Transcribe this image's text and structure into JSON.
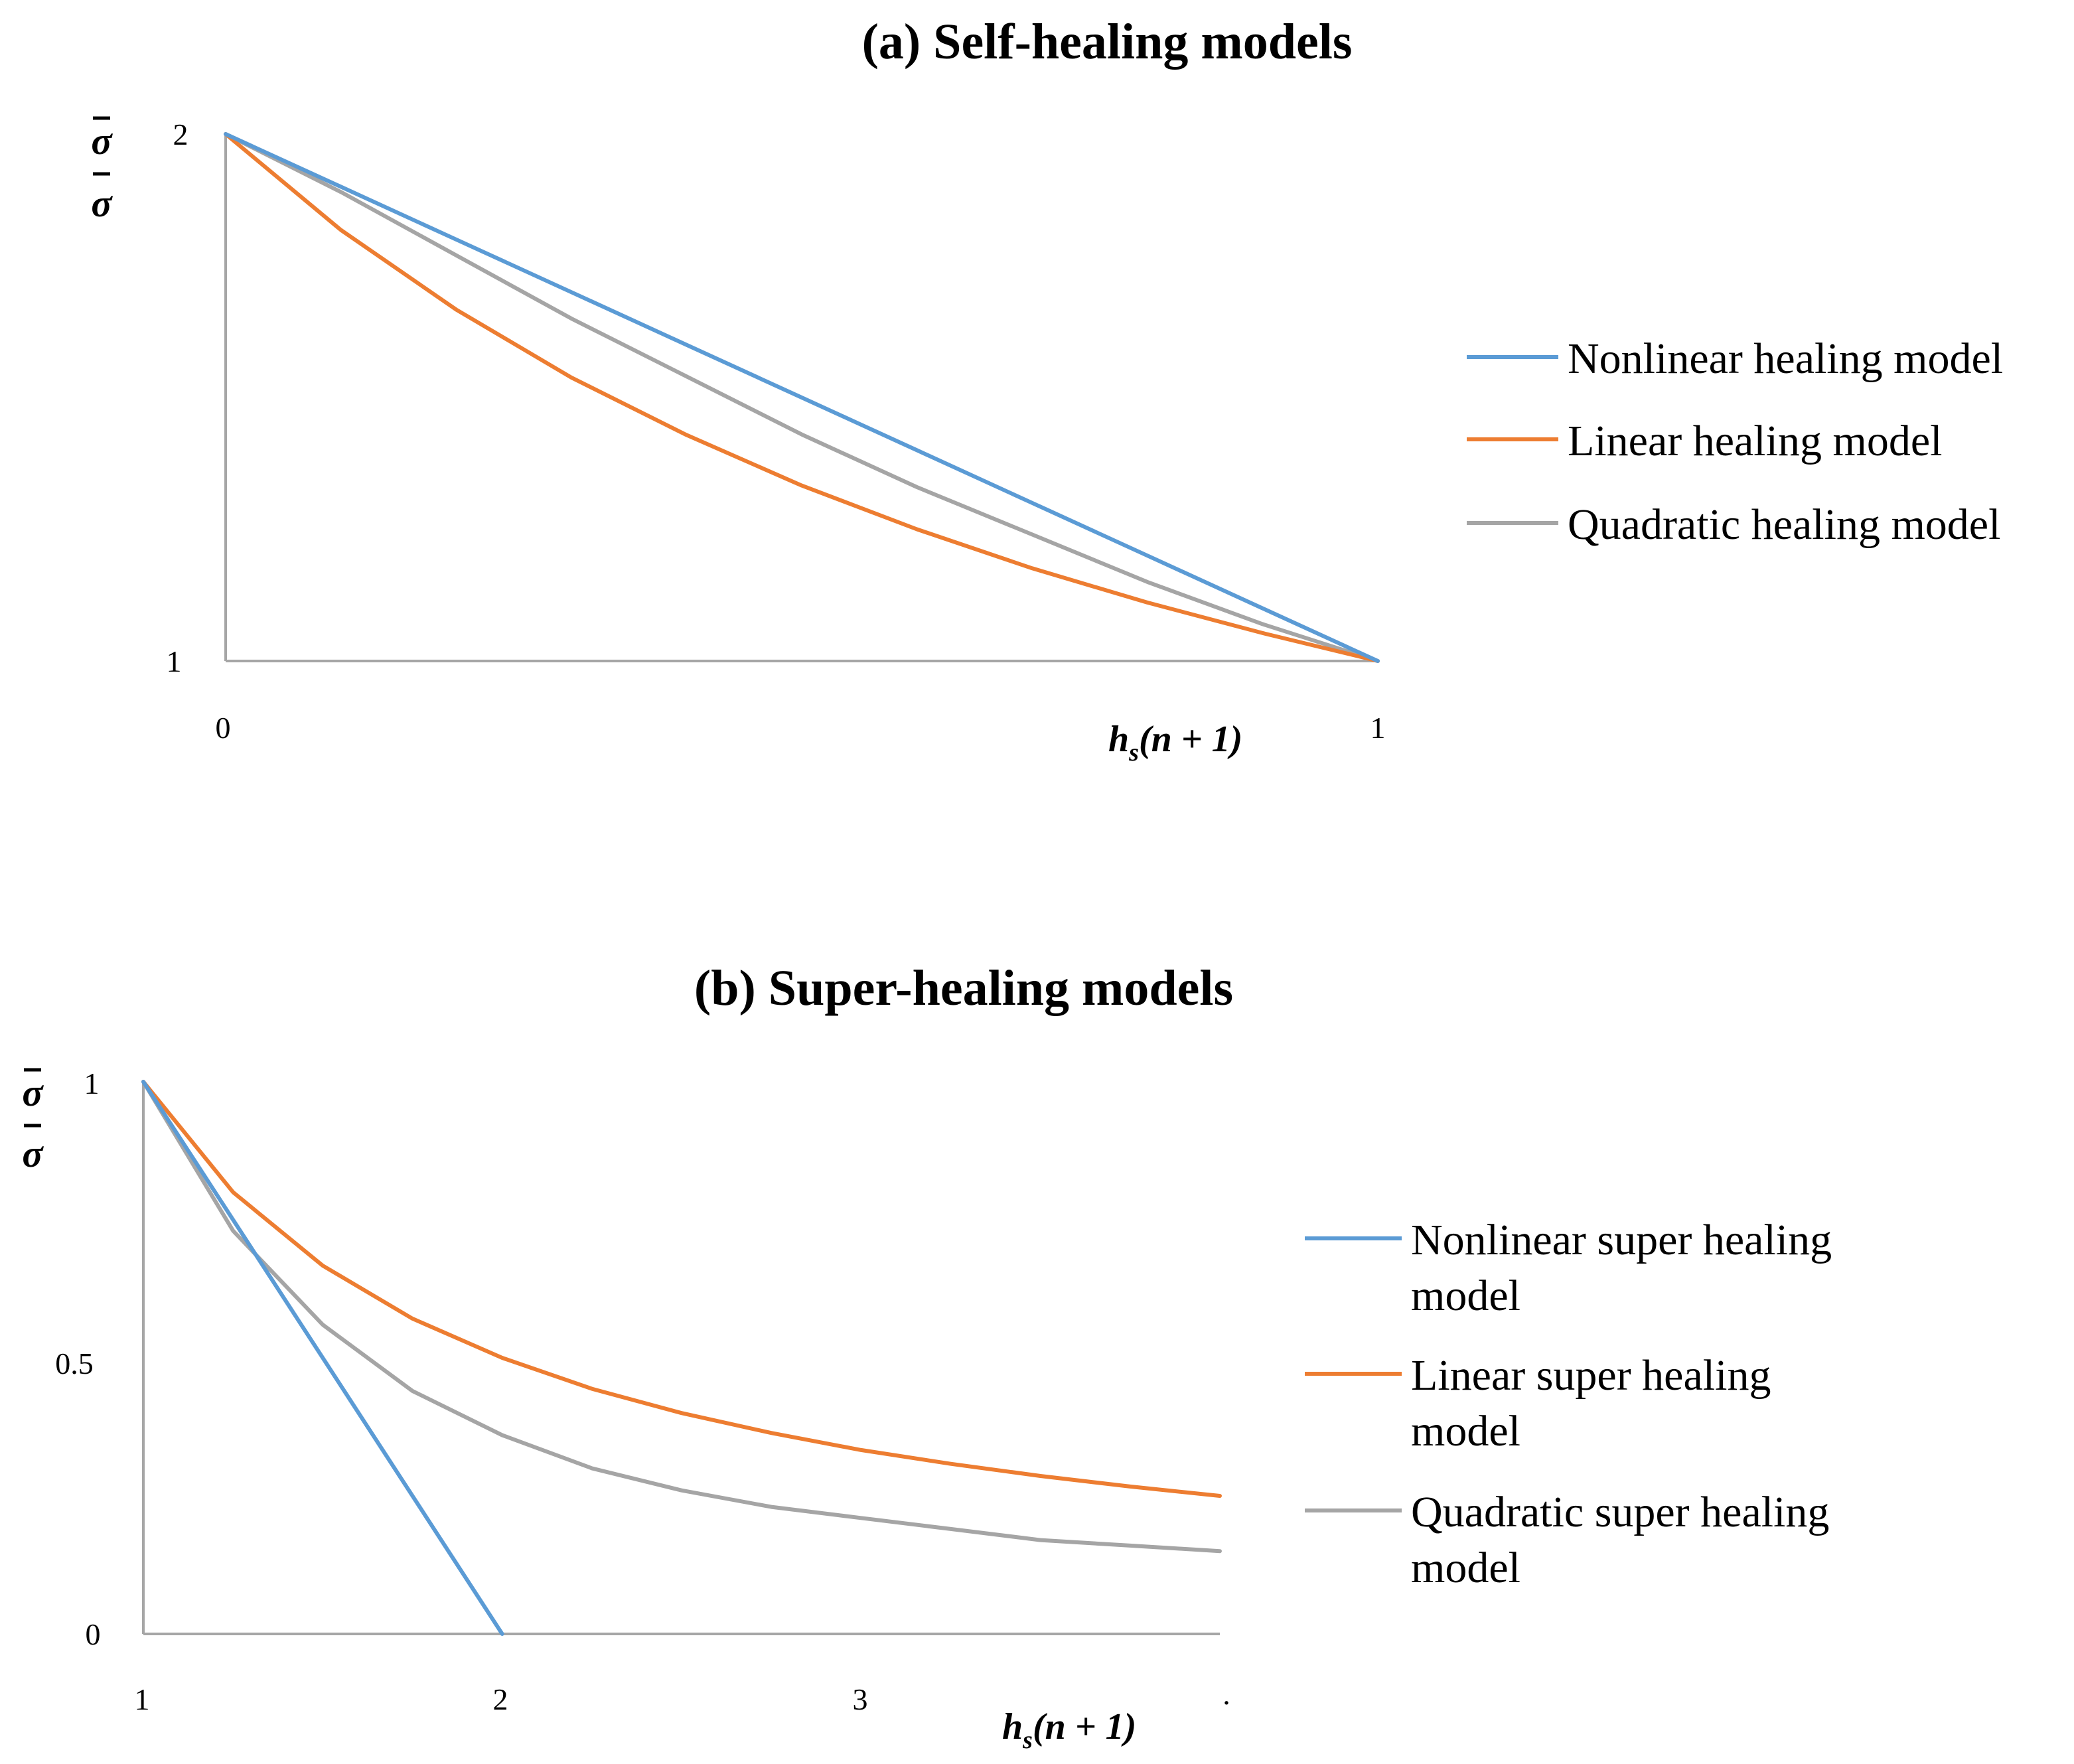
{
  "colors": {
    "nonlinear": "#5b9bd5",
    "linear": "#ed7d31",
    "quadratic": "#a5a5a5"
  },
  "chart_data": [
    {
      "type": "line",
      "title": "(a) Self-healing models",
      "xlabel": "h_s(n + 1)",
      "ylabel": "σ̄/σ",
      "xlim": [
        0,
        1
      ],
      "ylim": [
        1,
        2
      ],
      "x_ticks": [
        "0",
        "1"
      ],
      "y_ticks": [
        "1",
        "2"
      ],
      "legend_position": "right",
      "series": [
        {
          "name": "Nonlinear healing model",
          "x": [
            0,
            0.1,
            0.2,
            0.3,
            0.4,
            0.5,
            0.6,
            0.7,
            0.8,
            0.9,
            1.0
          ],
          "values": [
            2.0,
            1.9,
            1.8,
            1.7,
            1.6,
            1.5,
            1.4,
            1.3,
            1.2,
            1.1,
            1.0
          ]
        },
        {
          "name": "Linear healing model",
          "x": [
            0,
            0.1,
            0.2,
            0.3,
            0.4,
            0.5,
            0.6,
            0.7,
            0.8,
            0.9,
            1.0
          ],
          "values": [
            2.0,
            1.818,
            1.667,
            1.538,
            1.429,
            1.333,
            1.25,
            1.176,
            1.111,
            1.053,
            1.0
          ]
        },
        {
          "name": "Quadratic healing model",
          "x": [
            0,
            0.1,
            0.2,
            0.3,
            0.4,
            0.5,
            0.6,
            0.7,
            0.8,
            0.9,
            1.0
          ],
          "values": [
            2.0,
            1.89,
            1.77,
            1.65,
            1.54,
            1.43,
            1.33,
            1.24,
            1.15,
            1.07,
            1.0
          ]
        }
      ]
    },
    {
      "type": "line",
      "title": "(b) Super-healing models",
      "xlabel": "h_s(n + 1)",
      "ylabel": "σ̄/σ",
      "xlim": [
        1,
        4
      ],
      "ylim": [
        0,
        1
      ],
      "x_ticks": [
        "1",
        "2",
        "3",
        "."
      ],
      "y_ticks": [
        "0",
        "0.5",
        "1"
      ],
      "legend_position": "right",
      "series": [
        {
          "name": "Nonlinear super healing model",
          "x": [
            1.0,
            1.25,
            1.5,
            1.75,
            2.0
          ],
          "values": [
            1.0,
            0.75,
            0.5,
            0.25,
            0.0
          ]
        },
        {
          "name": "Linear super healing model",
          "x": [
            1.0,
            1.25,
            1.5,
            1.75,
            2.0,
            2.25,
            2.5,
            2.75,
            3.0,
            3.25,
            3.5,
            3.75,
            4.0
          ],
          "values": [
            1.0,
            0.8,
            0.667,
            0.571,
            0.5,
            0.444,
            0.4,
            0.364,
            0.333,
            0.308,
            0.286,
            0.267,
            0.25
          ]
        },
        {
          "name": "Quadratic super healing model",
          "x": [
            1.0,
            1.25,
            1.5,
            1.75,
            2.0,
            2.25,
            2.5,
            2.75,
            3.0,
            3.25,
            3.5,
            3.75,
            4.0
          ],
          "values": [
            1.0,
            0.73,
            0.56,
            0.44,
            0.36,
            0.3,
            0.26,
            0.23,
            0.21,
            0.19,
            0.17,
            0.16,
            0.15
          ]
        }
      ]
    }
  ]
}
